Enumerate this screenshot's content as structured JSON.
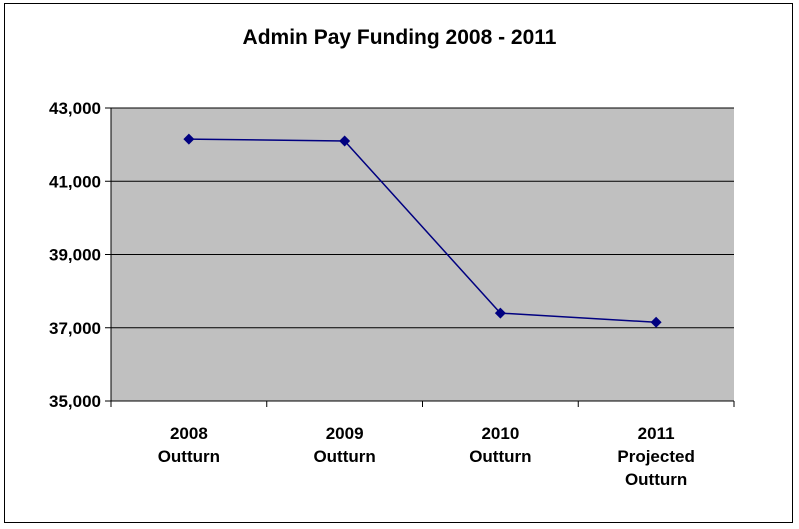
{
  "chart_data": {
    "type": "line",
    "title": "Admin Pay Funding 2008 - 2011",
    "xlabel": "",
    "ylabel": "",
    "categories": [
      [
        "2008",
        "Outturn"
      ],
      [
        "2009",
        "Outturn"
      ],
      [
        "2010",
        "Outturn"
      ],
      [
        "2011",
        "Projected",
        "Outturn"
      ]
    ],
    "series": [
      {
        "values": [
          42150,
          42100,
          37400,
          37150
        ]
      }
    ],
    "ylim": [
      35000,
      43000
    ],
    "yticks": [
      35000,
      37000,
      39000,
      41000,
      43000
    ],
    "ytick_labels": [
      "35,000",
      "37,000",
      "39,000",
      "41,000",
      "43,000"
    ],
    "grid": true,
    "legend": "none",
    "colors": {
      "plot_background": "#c0c0c0",
      "line": "#000080",
      "marker": "#000080",
      "gridline": "#000000"
    }
  }
}
